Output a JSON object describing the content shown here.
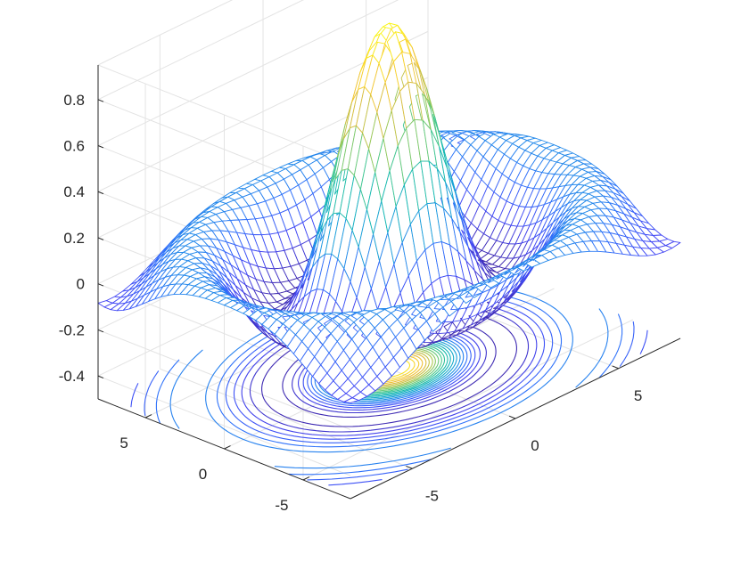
{
  "chart_data": {
    "type": "surface",
    "function": "sin(r)/r, r = sqrt(x^2 + y^2)",
    "title": "",
    "xlabel": "",
    "ylabel": "",
    "zlabel": "",
    "xlim": [
      -8,
      8
    ],
    "ylim": [
      -8,
      8
    ],
    "zlim": [
      -0.5,
      0.95
    ],
    "grid": true,
    "legend": "none",
    "colormap": "parula",
    "contour_projection": "below",
    "x_ticks": [
      {
        "value": -5,
        "label": "-5"
      },
      {
        "value": 0,
        "label": "0"
      },
      {
        "value": 5,
        "label": "5"
      }
    ],
    "y_ticks": [
      {
        "value": -5,
        "label": "-5"
      },
      {
        "value": 0,
        "label": "0"
      },
      {
        "value": 5,
        "label": "5"
      }
    ],
    "z_ticks": [
      {
        "value": -0.4,
        "label": "-0.4"
      },
      {
        "value": -0.2,
        "label": "-0.2"
      },
      {
        "value": 0,
        "label": "0"
      },
      {
        "value": 0.2,
        "label": "0.2"
      },
      {
        "value": 0.4,
        "label": "0.4"
      },
      {
        "value": 0.6,
        "label": "0.6"
      },
      {
        "value": 0.8,
        "label": "0.8"
      }
    ],
    "colors": {
      "axis": "#262626",
      "grid": "#e3e3e3",
      "parula": [
        "#3e26a8",
        "#4346f4",
        "#2f72fa",
        "#199ddc",
        "#0fb7b3",
        "#4bc98a",
        "#a7c84f",
        "#ecba3a",
        "#fbdb29",
        "#f9fb0e"
      ]
    }
  }
}
